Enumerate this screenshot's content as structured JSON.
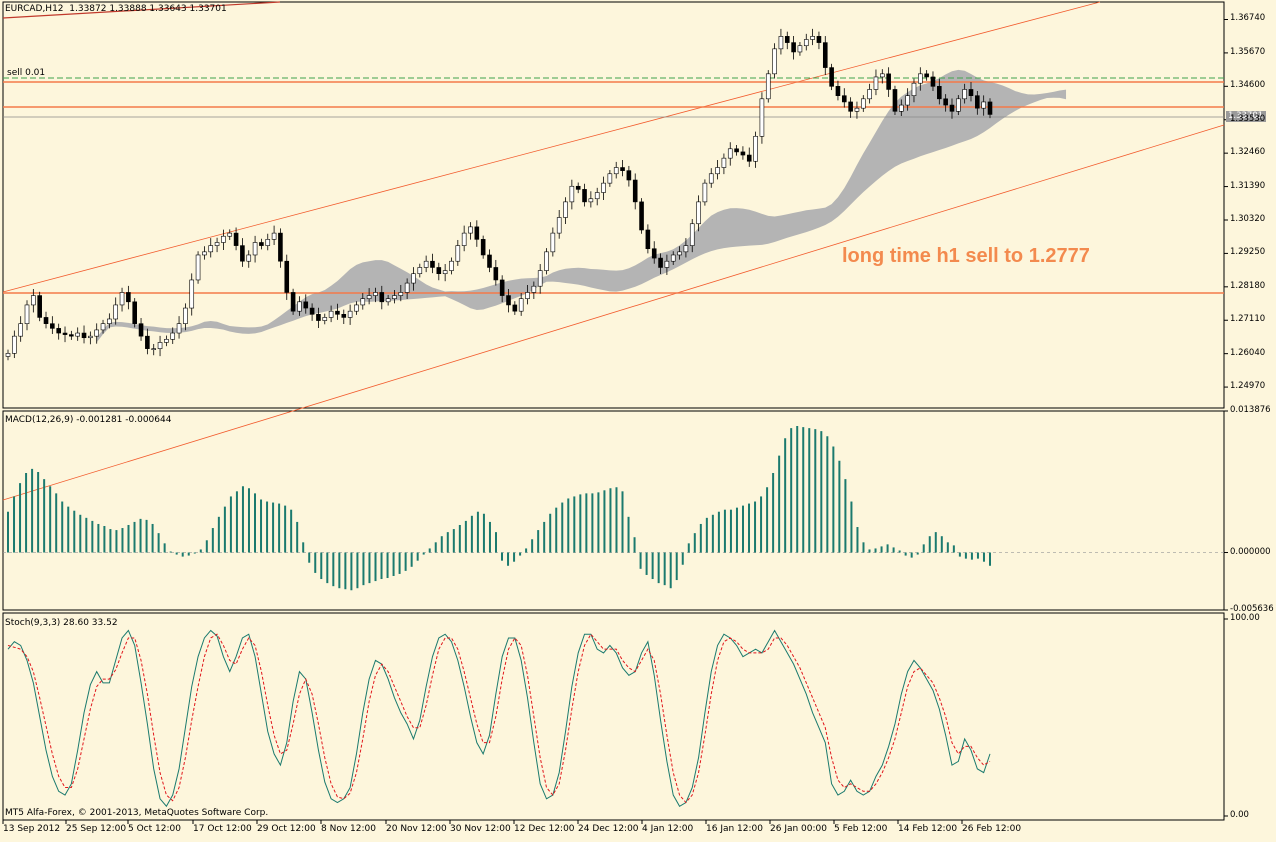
{
  "header": {
    "symbol": "EURCAD,H12",
    "ohlc": "1.33872 1.33888 1.33643 1.33701"
  },
  "order_label": "sell 0.01",
  "annotation": "long time h1 sell to 1.2777",
  "copyright": "MT5 Alfa-Forex, © 2001-2013, MetaQuotes Software Corp.",
  "colors": {
    "background": "#fdf6dc",
    "bull": "#1b7a6e",
    "bear": "#1b7a6e",
    "cloud": "#b4b4b4",
    "channel": "#f25c2e",
    "horizontal_level": "#f47a4a",
    "sell_line": "#3fa34d",
    "macd": "#1b7a6e",
    "stoch_main": "#1b7a6e",
    "stoch_signal": "#e0161b",
    "annotation": "#f38a4e"
  },
  "chart_data": [
    {
      "type": "candlestick",
      "title": "EURCAD,H12",
      "y_axis_labels": [
        "1.36740",
        "1.35670",
        "1.34600",
        "1.33530",
        "1.32460",
        "1.31390",
        "1.30320",
        "1.29250",
        "1.28180",
        "1.27110",
        "1.26040",
        "1.24970"
      ],
      "current_price_label": "1.33701",
      "ylim": [
        1.243,
        1.373
      ],
      "close": [
        1.2605,
        1.266,
        1.27,
        1.276,
        1.279,
        1.272,
        1.27,
        1.2685,
        1.267,
        1.2665,
        1.266,
        1.267,
        1.2655,
        1.266,
        1.268,
        1.27,
        1.2715,
        1.276,
        1.28,
        1.277,
        1.27,
        1.266,
        1.262,
        1.262,
        1.264,
        1.265,
        1.267,
        1.27,
        1.275,
        1.284,
        1.292,
        1.293,
        1.295,
        1.296,
        1.298,
        1.299,
        1.295,
        1.29,
        1.292,
        1.296,
        1.295,
        1.297,
        1.299,
        1.29,
        1.28,
        1.274,
        1.277,
        1.275,
        1.273,
        1.271,
        1.272,
        1.274,
        1.273,
        1.272,
        1.274,
        1.276,
        1.278,
        1.279,
        1.28,
        1.277,
        1.278,
        1.279,
        1.28,
        1.283,
        1.286,
        1.288,
        1.29,
        1.288,
        1.286,
        1.287,
        1.29,
        1.295,
        1.299,
        1.301,
        1.297,
        1.292,
        1.288,
        1.284,
        1.279,
        1.276,
        1.274,
        1.278,
        1.28,
        1.282,
        1.287,
        1.293,
        1.299,
        1.304,
        1.309,
        1.314,
        1.313,
        1.309,
        1.31,
        1.312,
        1.315,
        1.318,
        1.32,
        1.319,
        1.316,
        1.309,
        1.3,
        1.294,
        1.291,
        1.288,
        1.29,
        1.292,
        1.293,
        1.295,
        1.302,
        1.309,
        1.315,
        1.318,
        1.32,
        1.323,
        1.326,
        1.325,
        1.324,
        1.322,
        1.33,
        1.342,
        1.35,
        1.358,
        1.362,
        1.36,
        1.357,
        1.359,
        1.361,
        1.362,
        1.36,
        1.352,
        1.346,
        1.343,
        1.341,
        1.338,
        1.339,
        1.342,
        1.345,
        1.349,
        1.35,
        1.345,
        1.338,
        1.34,
        1.343,
        1.347,
        1.35,
        1.349,
        1.346,
        1.342,
        1.34,
        1.338,
        1.342,
        1.345,
        1.343,
        1.339,
        1.341,
        1.337
      ]
    },
    {
      "type": "bar",
      "title": "MACD(12,26,9) -0.001281 -0.000644",
      "y_axis_labels": [
        "0.013876",
        "0.000000",
        "-0.005636"
      ],
      "ylim": [
        -0.005636,
        0.013876
      ],
      "values": [
        0.004,
        0.0055,
        0.0068,
        0.0078,
        0.0082,
        0.0079,
        0.0072,
        0.0065,
        0.0058,
        0.005,
        0.0045,
        0.0041,
        0.0037,
        0.0034,
        0.0031,
        0.0028,
        0.0026,
        0.0023,
        0.0022,
        0.0024,
        0.0027,
        0.003,
        0.0033,
        0.0032,
        0.0028,
        0.0019,
        0.0009,
        0.0001,
        -0.0002,
        -0.0004,
        -0.0003,
        -0.0001,
        0.0003,
        0.0012,
        0.0024,
        0.0035,
        0.0045,
        0.0055,
        0.006,
        0.0065,
        0.0063,
        0.0058,
        0.0052,
        0.005,
        0.0049,
        0.0048,
        0.0046,
        0.0042,
        0.003,
        0.001,
        -0.001,
        -0.002,
        -0.0026,
        -0.003,
        -0.0033,
        -0.0035,
        -0.0036,
        -0.0037,
        -0.0035,
        -0.0032,
        -0.003,
        -0.0028,
        -0.0026,
        -0.0025,
        -0.0023,
        -0.0021,
        -0.0018,
        -0.0014,
        -0.0008,
        -0.0002,
        0.0004,
        0.001,
        0.0016,
        0.002,
        0.0023,
        0.0027,
        0.0031,
        0.0036,
        0.004,
        0.0038,
        0.003,
        0.002,
        -0.0008,
        -0.0013,
        -0.0009,
        -0.0003,
        0.0004,
        0.0013,
        0.0022,
        0.003,
        0.0038,
        0.0044,
        0.0049,
        0.0053,
        0.0055,
        0.0057,
        0.0058,
        0.0058,
        0.0059,
        0.0061,
        0.0063,
        0.0064,
        0.006,
        0.0035,
        0.0015,
        -0.0016,
        -0.0022,
        -0.0026,
        -0.003,
        -0.0032,
        -0.0035,
        -0.0027,
        -0.0012,
        0.0009,
        0.0019,
        0.0028,
        0.0034,
        0.0037,
        0.004,
        0.0042,
        0.0042,
        0.0044,
        0.0046,
        0.0048,
        0.005,
        0.0055,
        0.0064,
        0.0078,
        0.0095,
        0.0112,
        0.0122,
        0.0124,
        0.0123,
        0.0122,
        0.0121,
        0.0119,
        0.0114,
        0.0104,
        0.009,
        0.0072,
        0.005,
        0.0025,
        0.001,
        0.0003,
        0.0004,
        0.0006,
        0.0008,
        0.0005,
        0.0002,
        -0.0003,
        -0.0005,
        -0.0002,
        0.0008,
        0.0016,
        0.002,
        0.0016,
        0.001,
        0.0007,
        -0.0004,
        -0.0006,
        -0.0007,
        -0.0006,
        -0.0009,
        -0.0013
      ]
    },
    {
      "type": "line",
      "title": "Stoch(9,3,3) 28.60 33.52",
      "y_axis_labels": [
        "100.00",
        "0.00"
      ],
      "ylim": [
        0,
        100
      ],
      "series": [
        {
          "values": [
            86,
            90,
            88,
            80,
            68,
            50,
            32,
            18,
            10,
            8,
            14,
            32,
            52,
            67,
            74,
            68,
            68,
            80,
            92,
            96,
            88,
            68,
            46,
            22,
            6,
            2,
            8,
            22,
            44,
            66,
            82,
            92,
            96,
            93,
            82,
            74,
            82,
            92,
            94,
            82,
            62,
            42,
            30,
            24,
            36,
            58,
            74,
            70,
            52,
            32,
            15,
            6,
            4,
            6,
            12,
            30,
            52,
            70,
            80,
            78,
            70,
            60,
            52,
            46,
            38,
            48,
            66,
            82,
            92,
            94,
            90,
            80,
            66,
            50,
            36,
            30,
            40,
            62,
            82,
            92,
            92,
            80,
            60,
            36,
            14,
            6,
            8,
            20,
            42,
            66,
            84,
            94,
            94,
            86,
            84,
            88,
            84,
            76,
            72,
            74,
            84,
            90,
            72,
            48,
            26,
            8,
            2,
            4,
            12,
            28,
            52,
            74,
            88,
            94,
            92,
            88,
            82,
            84,
            86,
            84,
            90,
            96,
            90,
            84,
            78,
            70,
            62,
            52,
            44,
            36,
            14,
            8,
            10,
            16,
            10,
            8,
            10,
            18,
            24,
            34,
            46,
            62,
            74,
            80,
            76,
            70,
            64,
            54,
            40,
            24,
            26,
            38,
            32,
            22,
            20,
            30
          ]
        },
        {
          "values": [
            88,
            87,
            86,
            82,
            74,
            60,
            45,
            30,
            18,
            12,
            12,
            22,
            38,
            54,
            66,
            70,
            70,
            75,
            84,
            92,
            92,
            80,
            62,
            40,
            20,
            8,
            5,
            12,
            28,
            48,
            66,
            82,
            92,
            94,
            88,
            80,
            78,
            86,
            92,
            88,
            74,
            56,
            40,
            30,
            32,
            46,
            62,
            70,
            62,
            46,
            28,
            14,
            7,
            6,
            9,
            20,
            38,
            58,
            72,
            78,
            74,
            66,
            58,
            50,
            44,
            44,
            56,
            72,
            86,
            92,
            92,
            86,
            74,
            60,
            46,
            36,
            36,
            50,
            70,
            86,
            92,
            88,
            72,
            50,
            28,
            12,
            8,
            14,
            32,
            54,
            74,
            88,
            94,
            90,
            86,
            86,
            86,
            80,
            76,
            74,
            80,
            86,
            80,
            62,
            40,
            20,
            8,
            4,
            8,
            20,
            40,
            62,
            80,
            90,
            92,
            90,
            86,
            84,
            84,
            84,
            86,
            92,
            92,
            88,
            82,
            76,
            68,
            60,
            52,
            44,
            28,
            16,
            12,
            14,
            12,
            10,
            10,
            14,
            20,
            28,
            38,
            52,
            66,
            74,
            76,
            72,
            68,
            60,
            50,
            36,
            30,
            34,
            34,
            28,
            24,
            26
          ]
        }
      ]
    }
  ],
  "x_axis_labels": [
    "13 Sep 2012",
    "25 Sep 12:00",
    "5 Oct 12:00",
    "17 Oct 12:00",
    "29 Oct 12:00",
    "8 Nov 12:00",
    "20 Nov 12:00",
    "30 Nov 12:00",
    "12 Dec 12:00",
    "24 Dec 12:00",
    "4 Jan 12:00",
    "16 Jan 12:00",
    "26 Jan 00:00",
    "5 Feb 12:00",
    "14 Feb 12:00",
    "26 Feb 12:00"
  ]
}
